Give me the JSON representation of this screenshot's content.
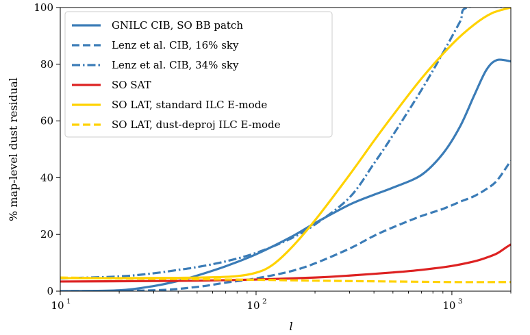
{
  "chart_data": {
    "type": "line",
    "xlabel": "l",
    "ylabel": "% map-level dust residual",
    "xscale": "log",
    "xlim": [
      10,
      2000
    ],
    "ylim": [
      0,
      100
    ],
    "x_ticks": [
      {
        "value": 10,
        "base": "10",
        "exp": "1"
      },
      {
        "value": 100,
        "base": "10",
        "exp": "2"
      },
      {
        "value": 1000,
        "base": "10",
        "exp": "3"
      }
    ],
    "y_ticks": [
      "0",
      "20",
      "40",
      "60",
      "80",
      "100"
    ],
    "grid": false,
    "legend_position": "top-left",
    "series": [
      {
        "name": "GNILC CIB, SO BB patch",
        "color": "#3b7cb7",
        "dash": "solid",
        "points": [
          [
            10,
            0
          ],
          [
            20,
            0.3
          ],
          [
            30,
            1.8
          ],
          [
            40,
            3.6
          ],
          [
            50,
            5.5
          ],
          [
            70,
            8.8
          ],
          [
            100,
            13
          ],
          [
            150,
            19
          ],
          [
            200,
            24
          ],
          [
            300,
            30.5
          ],
          [
            400,
            34
          ],
          [
            500,
            36.5
          ],
          [
            700,
            41
          ],
          [
            900,
            48.5
          ],
          [
            1100,
            58
          ],
          [
            1300,
            69
          ],
          [
            1500,
            78
          ],
          [
            1700,
            81.5
          ],
          [
            2000,
            81
          ]
        ]
      },
      {
        "name": "Lenz et al. CIB, 16% sky",
        "color": "#3b7cb7",
        "dash": "dashed",
        "points": [
          [
            10,
            0
          ],
          [
            30,
            0.3
          ],
          [
            50,
            1.5
          ],
          [
            70,
            3
          ],
          [
            100,
            4.5
          ],
          [
            150,
            7
          ],
          [
            200,
            9.8
          ],
          [
            300,
            15
          ],
          [
            400,
            19.5
          ],
          [
            500,
            22.5
          ],
          [
            700,
            26.5
          ],
          [
            900,
            29
          ],
          [
            1100,
            31.5
          ],
          [
            1300,
            33.5
          ],
          [
            1500,
            36
          ],
          [
            1700,
            39
          ],
          [
            2000,
            46
          ]
        ]
      },
      {
        "name": "Lenz et al. CIB, 34% sky",
        "color": "#3b7cb7",
        "dash": "dashdot",
        "points": [
          [
            10,
            4.5
          ],
          [
            20,
            5.2
          ],
          [
            30,
            6.3
          ],
          [
            40,
            7.5
          ],
          [
            50,
            8.5
          ],
          [
            70,
            10.5
          ],
          [
            100,
            13.5
          ],
          [
            150,
            18.5
          ],
          [
            200,
            23.5
          ],
          [
            300,
            33
          ],
          [
            400,
            45
          ],
          [
            500,
            55
          ],
          [
            700,
            71
          ],
          [
            900,
            84
          ],
          [
            1100,
            95
          ],
          [
            1200,
            100
          ],
          [
            2000,
            100
          ]
        ]
      },
      {
        "name": "SO SAT",
        "color": "#dd2222",
        "dash": "solid",
        "points": [
          [
            10,
            3.4
          ],
          [
            20,
            3.5
          ],
          [
            50,
            3.7
          ],
          [
            100,
            4.1
          ],
          [
            200,
            4.8
          ],
          [
            300,
            5.5
          ],
          [
            500,
            6.6
          ],
          [
            700,
            7.5
          ],
          [
            1000,
            8.9
          ],
          [
            1300,
            10.5
          ],
          [
            1500,
            11.8
          ],
          [
            1700,
            13.3
          ],
          [
            1900,
            15.5
          ],
          [
            2000,
            16.5
          ]
        ]
      },
      {
        "name": "SO LAT, standard ILC E-mode",
        "color": "#ffd200",
        "dash": "solid",
        "points": [
          [
            10,
            4.6
          ],
          [
            20,
            4.6
          ],
          [
            40,
            4.7
          ],
          [
            60,
            4.9
          ],
          [
            80,
            5.3
          ],
          [
            100,
            6.5
          ],
          [
            120,
            9
          ],
          [
            150,
            15
          ],
          [
            200,
            25
          ],
          [
            300,
            41
          ],
          [
            400,
            53
          ],
          [
            500,
            62
          ],
          [
            700,
            75
          ],
          [
            1000,
            87
          ],
          [
            1300,
            94
          ],
          [
            1600,
            98
          ],
          [
            2000,
            100
          ]
        ]
      },
      {
        "name": "SO LAT, dust-deproj ILC E-mode",
        "color": "#ffd200",
        "dash": "dashed",
        "points": [
          [
            10,
            4.8
          ],
          [
            20,
            4.5
          ],
          [
            50,
            4.2
          ],
          [
            100,
            4
          ],
          [
            200,
            3.7
          ],
          [
            500,
            3.4
          ],
          [
            1000,
            3.2
          ],
          [
            2000,
            3.2
          ]
        ]
      }
    ]
  }
}
